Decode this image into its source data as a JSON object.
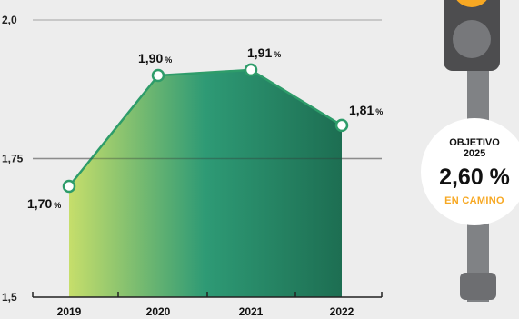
{
  "chart_data": {
    "type": "area",
    "title": "",
    "xlabel": "",
    "ylabel": "",
    "categories": [
      "2019",
      "2020",
      "2021",
      "2022"
    ],
    "values": [
      1.7,
      1.9,
      1.91,
      1.81
    ],
    "data_labels": [
      "1,70",
      "1,90",
      "1,91",
      "1,81"
    ],
    "data_label_unit": "%",
    "ylim": [
      1.5,
      2.0
    ],
    "y_ticks": [
      {
        "value": 1.5,
        "label": "1,5"
      },
      {
        "value": 1.75,
        "label": "1,75"
      },
      {
        "value": 2.0,
        "label": "2,0"
      }
    ],
    "grid": true,
    "colors": {
      "line": "#2e9c6a",
      "fill_start": "#c6de6b",
      "fill_mid": "#2e9a75",
      "fill_end": "#1d6e52",
      "marker_fill": "#ffffff"
    }
  },
  "target": {
    "label": "OBJETIVO",
    "year": "2025",
    "value": "2,60 %",
    "status": "EN CAMINO",
    "status_color": "#f7a823",
    "indicator_icon": "traffic-light-icon"
  }
}
